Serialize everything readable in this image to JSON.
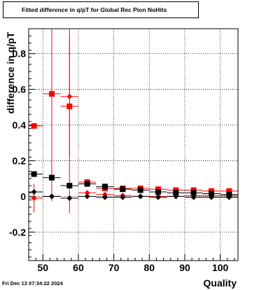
{
  "timestamp": "Fri Dec 13 07:34:22 2024",
  "chart_data": {
    "type": "scatter",
    "title": "Fitted difference in q/pT for Global Rec Pion NoHits",
    "xlabel": "Quality",
    "ylabel": "difference in q/pT",
    "xlim": [
      46,
      105
    ],
    "ylim": [
      -0.36,
      0.94
    ],
    "xticks": [
      50,
      60,
      70,
      80,
      90,
      100
    ],
    "yticks": [
      -0.2,
      0,
      0.2,
      0.4,
      0.6,
      0.8
    ],
    "xtick_labels": [
      "50",
      "60",
      "70",
      "80",
      "90",
      "100"
    ],
    "ytick_labels": [
      "-0.2",
      "0",
      "0.2",
      "0.4",
      "0.6",
      "0.8"
    ],
    "grid": true,
    "bin_half_width": 2.5,
    "series": [
      {
        "marker": "square",
        "color": "#ff0000",
        "x": [
          47.5,
          52.5,
          57.5,
          62.5,
          67.5,
          72.5,
          77.5,
          82.5,
          87.5,
          92.5,
          97.5,
          102.5
        ],
        "y": [
          0.395,
          0.575,
          0.505,
          0.08,
          0.045,
          0.045,
          0.045,
          0.04,
          0.035,
          0.035,
          0.03,
          0.03
        ],
        "yerr": [
          0,
          0.6,
          0.6,
          0,
          0,
          0,
          0,
          0,
          0,
          0,
          0,
          0
        ]
      },
      {
        "marker": "diamond",
        "color": "#ff0000",
        "x": [
          47.5,
          52.5,
          57.5,
          62.5,
          67.5,
          72.5,
          77.5,
          82.5,
          87.5,
          92.5,
          97.5,
          102.5
        ],
        "y": [
          -0.01,
          0.0,
          0.56,
          0.02,
          0.01,
          0.005,
          0.0,
          0.0,
          0.0,
          0.005,
          0.005,
          0.005
        ],
        "yerr": [
          0.08,
          0,
          0.33,
          0,
          0,
          0,
          0,
          0,
          0,
          0,
          0,
          0
        ]
      },
      {
        "marker": "square",
        "color": "#000000",
        "x": [
          47.5,
          52.5,
          57.5,
          62.5,
          67.5,
          72.5,
          77.5,
          82.5,
          87.5,
          92.5,
          97.5,
          102.5
        ],
        "y": [
          0.125,
          0.105,
          0.06,
          0.07,
          0.055,
          0.04,
          0.035,
          0.025,
          0.02,
          0.02,
          0.015,
          0.01
        ],
        "yerr": [
          0,
          0,
          0,
          0,
          0,
          0,
          0,
          0,
          0,
          0,
          0,
          0
        ]
      },
      {
        "marker": "diamond",
        "color": "#000000",
        "x": [
          47.5,
          52.5,
          57.5,
          62.5,
          67.5,
          72.5,
          77.5,
          82.5,
          87.5,
          92.5,
          97.5,
          102.5
        ],
        "y": [
          0.025,
          0.0,
          -0.01,
          0.0,
          -0.005,
          -0.005,
          0.0,
          -0.005,
          0.0,
          -0.005,
          -0.005,
          -0.005
        ],
        "yerr": [
          0,
          0,
          0,
          0,
          0,
          0,
          0,
          0,
          0,
          0,
          0,
          0
        ]
      }
    ]
  }
}
